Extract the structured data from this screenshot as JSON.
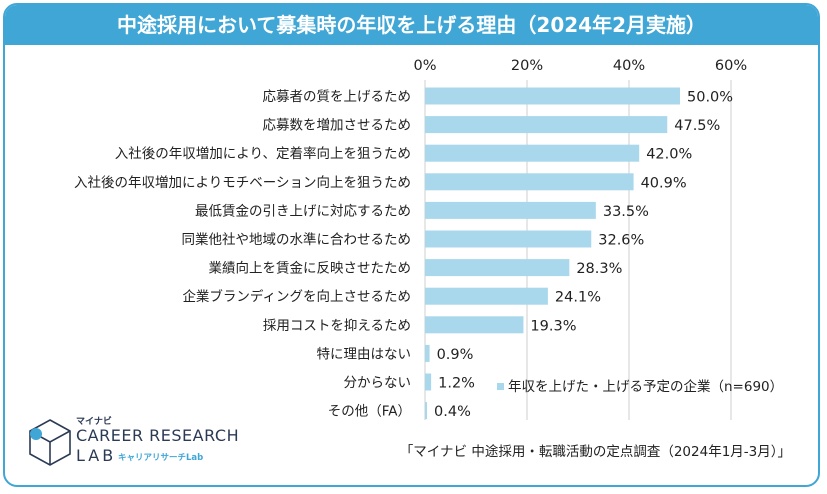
{
  "title": "中途採用において募集時の年収を上げる理由（2024年2月実施）",
  "source": "「マイナビ 中途採用・転職活動の定点調査（2024年1月-3月）」",
  "logo": {
    "small": "マイナビ",
    "main": "CAREER RESEARCH",
    "lab": "LAB",
    "sub": "キャリアリサーチLab"
  },
  "colors": {
    "accent": "#3fa6d6",
    "bar": "#a9d8ec",
    "grid": "#cfcfcf"
  },
  "chart_data": {
    "type": "bar",
    "orientation": "horizontal",
    "categories": [
      "応募者の質を上げるため",
      "応募数を増加させるため",
      "入社後の年収増加により、定着率向上を狙うため",
      "入社後の年収増加によりモチベーション向上を狙うため",
      "最低賃金の引き上げに対応するため",
      "同業他社や地域の水準に合わせるため",
      "業績向上を賃金に反映させたため",
      "企業ブランディングを向上させるため",
      "採用コストを抑えるため",
      "特に理由はない",
      "分からない",
      "その他（FA）"
    ],
    "series": [
      {
        "name": "年収を上げた・上げる予定の企業（n=690）",
        "values": [
          50.0,
          47.5,
          42.0,
          40.9,
          33.5,
          32.6,
          28.3,
          24.1,
          19.3,
          0.9,
          1.2,
          0.4
        ]
      }
    ],
    "value_labels": [
      "50.0%",
      "47.5%",
      "42.0%",
      "40.9%",
      "33.5%",
      "32.6%",
      "28.3%",
      "24.1%",
      "19.3%",
      "0.9%",
      "1.2%",
      "0.4%"
    ],
    "xlim": [
      0,
      60
    ],
    "xticks": [
      0,
      20,
      40,
      60
    ],
    "xtick_labels": [
      "0%",
      "20%",
      "40%",
      "60%"
    ],
    "grid": true,
    "legend_position": "bottom-right"
  }
}
